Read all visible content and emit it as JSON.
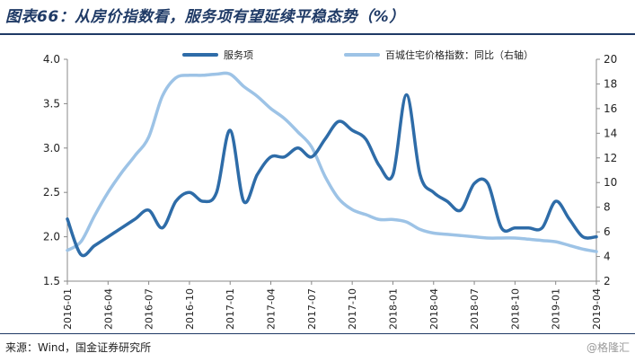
{
  "title": "图表66：从房价指数看，服务项有望延续平稳态势（%）",
  "source": "来源：Wind，国金证券研究所",
  "watermark": "@格隆汇",
  "chart_data": {
    "type": "line",
    "title": "图表66：从房价指数看，服务项有望延续平稳态势（%）",
    "x_tick_labels": [
      "2016-01",
      "2016-04",
      "2016-07",
      "2016-10",
      "2017-01",
      "2017-04",
      "2017-07",
      "2017-10",
      "2018-01",
      "2018-04",
      "2018-07",
      "2018-10",
      "2019-01",
      "2019-04"
    ],
    "x_range": [
      "2016-01",
      "2019-04"
    ],
    "y_left": {
      "lim": [
        1.5,
        4.0
      ],
      "ticks": [
        "1.5",
        "2.0",
        "2.5",
        "3.0",
        "3.5",
        "4.0"
      ]
    },
    "y_right": {
      "lim": [
        2,
        20
      ],
      "ticks": [
        "2",
        "4",
        "6",
        "8",
        "10",
        "12",
        "14",
        "16",
        "18",
        "20"
      ]
    },
    "legend_position": "top",
    "grid": false,
    "series": [
      {
        "name": "服务项",
        "axis": "left",
        "color": "#2e6ca8",
        "x": [
          "2016-01",
          "2016-02",
          "2016-03",
          "2016-04",
          "2016-05",
          "2016-06",
          "2016-07",
          "2016-08",
          "2016-09",
          "2016-10",
          "2016-11",
          "2016-12",
          "2017-01",
          "2017-02",
          "2017-03",
          "2017-04",
          "2017-05",
          "2017-06",
          "2017-07",
          "2017-08",
          "2017-09",
          "2017-10",
          "2017-11",
          "2017-12",
          "2018-01",
          "2018-02",
          "2018-03",
          "2018-04",
          "2018-05",
          "2018-06",
          "2018-07",
          "2018-08",
          "2018-09",
          "2018-10",
          "2018-11",
          "2018-12",
          "2019-01",
          "2019-02",
          "2019-03",
          "2019-04"
        ],
        "values": [
          2.2,
          1.8,
          1.9,
          2.0,
          2.1,
          2.2,
          2.3,
          2.1,
          2.4,
          2.5,
          2.4,
          2.5,
          3.2,
          2.4,
          2.7,
          2.9,
          2.9,
          3.0,
          2.9,
          3.1,
          3.3,
          3.2,
          3.1,
          2.8,
          2.7,
          3.6,
          2.7,
          2.5,
          2.4,
          2.3,
          2.6,
          2.6,
          2.1,
          2.1,
          2.1,
          2.1,
          2.4,
          2.2,
          2.0,
          2.0
        ]
      },
      {
        "name": "百城住宅价格指数：同比（右轴）",
        "axis": "right",
        "color": "#9dc3e6",
        "x": [
          "2016-01",
          "2016-02",
          "2016-03",
          "2016-04",
          "2016-05",
          "2016-06",
          "2016-07",
          "2016-08",
          "2016-09",
          "2016-10",
          "2016-11",
          "2016-12",
          "2017-01",
          "2017-02",
          "2017-03",
          "2017-04",
          "2017-05",
          "2017-06",
          "2017-07",
          "2017-08",
          "2017-09",
          "2017-10",
          "2017-11",
          "2017-12",
          "2018-01",
          "2018-02",
          "2018-03",
          "2018-04",
          "2018-05",
          "2018-06",
          "2018-07",
          "2018-08",
          "2018-09",
          "2018-10",
          "2018-11",
          "2018-12",
          "2019-01",
          "2019-02",
          "2019-03",
          "2019-04"
        ],
        "values": [
          4.5,
          5.2,
          7.3,
          9.2,
          10.8,
          12.2,
          13.7,
          17.0,
          18.5,
          18.7,
          18.7,
          18.8,
          18.8,
          17.8,
          17.0,
          16.0,
          15.2,
          14.1,
          12.9,
          10.5,
          8.7,
          7.8,
          7.4,
          7.0,
          7.0,
          6.8,
          6.2,
          5.9,
          5.8,
          5.7,
          5.6,
          5.5,
          5.5,
          5.5,
          5.4,
          5.3,
          5.2,
          4.9,
          4.6,
          4.4
        ]
      }
    ]
  }
}
